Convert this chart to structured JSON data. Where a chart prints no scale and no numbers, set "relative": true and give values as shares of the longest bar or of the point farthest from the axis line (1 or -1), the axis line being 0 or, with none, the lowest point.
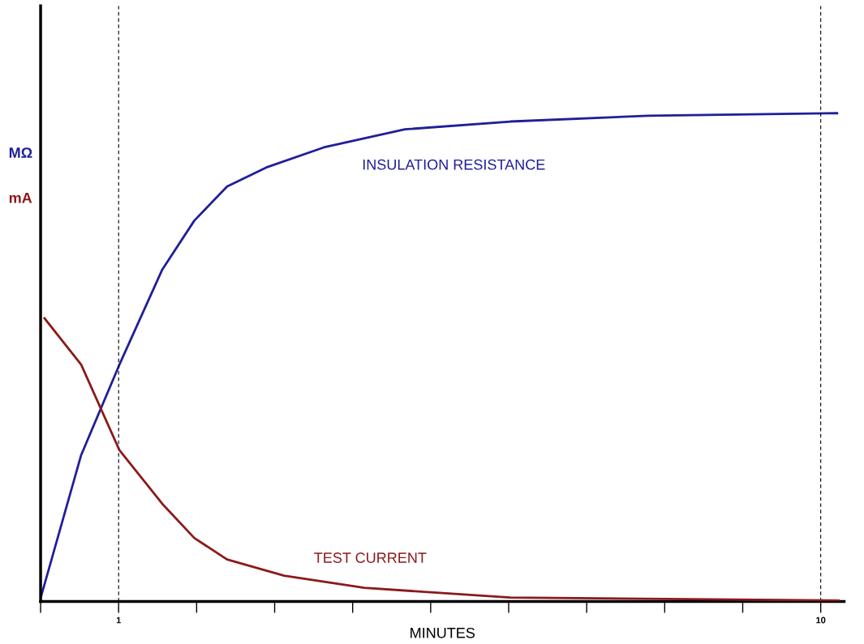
{
  "chart_data": {
    "type": "line",
    "relative": true,
    "xlabel": "MINUTES",
    "ylabel": "MΩ",
    "y2label": "mA",
    "xlim": [
      0,
      10.3
    ],
    "xticks": [
      {
        "value": 0,
        "label": null
      },
      1,
      {
        "value": 2,
        "label": null
      },
      {
        "value": 3,
        "label": null
      },
      {
        "value": 4,
        "label": null
      },
      {
        "value": 5,
        "label": null
      },
      {
        "value": 6,
        "label": null
      },
      {
        "value": 7,
        "label": null
      },
      {
        "value": 8,
        "label": null
      },
      {
        "value": 9,
        "label": null
      },
      10
    ],
    "tick_labels": "x",
    "grid": false,
    "legend": false,
    "marker": "none",
    "line_style": "solid",
    "series": [
      {
        "name": "INSULATION RESISTANCE",
        "color": "#1f1f9a",
        "x": [
          0,
          0.52,
          1.01,
          1.56,
          1.97,
          2.39,
          2.91,
          3.63,
          4.67,
          6.02,
          7.79,
          10.21
        ],
        "values": [
          0.007,
          0.3,
          0.485,
          0.68,
          0.78,
          0.85,
          0.89,
          0.93,
          0.967,
          0.983,
          0.995,
          1.0
        ]
      },
      {
        "name": "TEST CURRENT",
        "color": "#8b1a1a",
        "axis": "y2",
        "x": [
          0.05,
          0.52,
          1.01,
          1.56,
          1.97,
          2.39,
          3.12,
          4.15,
          6.02,
          10.23
        ],
        "values": [
          0.58,
          0.485,
          0.31,
          0.2,
          0.13,
          0.086,
          0.053,
          0.028,
          0.008,
          0.002
        ]
      }
    ],
    "ref_lines": [
      {
        "axis": "x",
        "value": 1,
        "label": null,
        "line_style": "dashed",
        "color": "#000000"
      },
      {
        "axis": "x",
        "value": 10,
        "label": null,
        "line_style": "dashed",
        "color": "#000000"
      }
    ]
  }
}
